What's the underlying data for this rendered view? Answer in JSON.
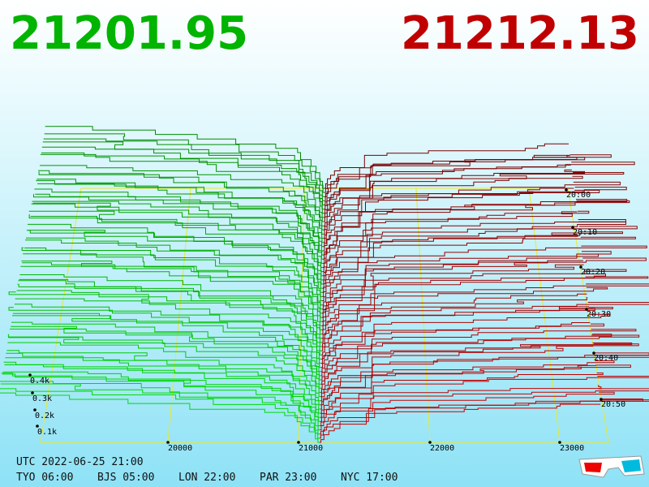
{
  "header": {
    "bid_price": "21201.95",
    "ask_price": "21212.13"
  },
  "depth_labels": [
    "0.4k",
    "0.3k",
    "0.2k",
    "0.1k"
  ],
  "price_labels": [
    "20000",
    "21000",
    "22000",
    "23000"
  ],
  "time_labels": [
    "20:00",
    "20:10",
    "20:20",
    "20:30",
    "20:40",
    "20:50"
  ],
  "footer": {
    "utc": "UTC 2022-06-25 21:00",
    "clocks": [
      "TYO 06:00",
      "BJS 05:00",
      "LON 22:00",
      "PAR 23:00",
      "NYC 17:00"
    ]
  }
}
